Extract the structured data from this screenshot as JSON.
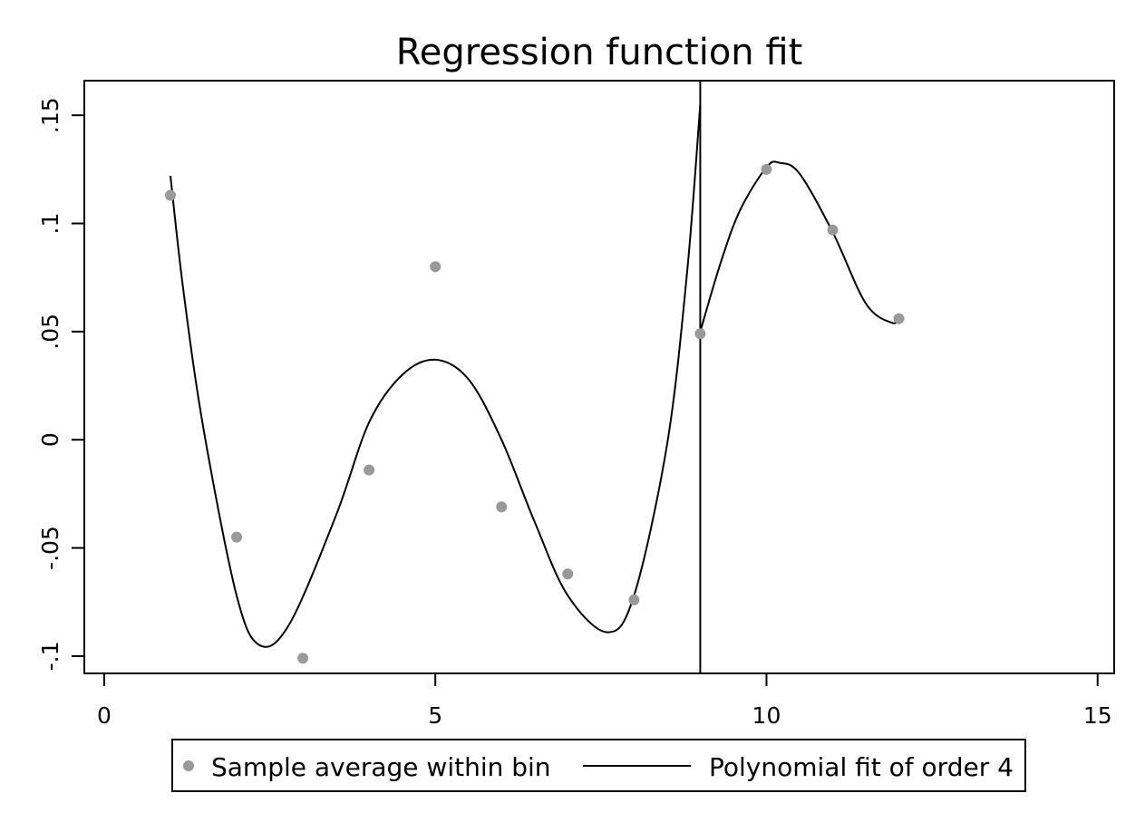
{
  "chart_data": {
    "type": "scatter",
    "title": "Regression function fit",
    "xlabel": "",
    "ylabel": "",
    "xlim": [
      -0.3,
      15.25
    ],
    "ylim": [
      -0.108,
      0.166
    ],
    "x_ticks": [
      0,
      5,
      10,
      15
    ],
    "x_tick_labels": [
      "0",
      "5",
      "10",
      "15"
    ],
    "y_ticks": [
      -0.1,
      -0.05,
      0,
      0.05,
      0.1,
      0.15
    ],
    "y_tick_labels": [
      "-.1",
      "-.05",
      "0",
      ".05",
      ".1",
      ".15"
    ],
    "grid": false,
    "cutoff_x": 9,
    "colors": {
      "points": "#999999",
      "fit": "#000000"
    },
    "legend_position": "bottom",
    "series": [
      {
        "name": "Sample average within bin",
        "type": "scatter",
        "x": [
          1,
          2,
          3,
          4,
          5,
          6,
          7,
          8,
          9,
          10,
          11,
          12
        ],
        "y": [
          0.113,
          -0.045,
          -0.101,
          -0.014,
          0.08,
          -0.031,
          -0.062,
          -0.074,
          0.049,
          0.125,
          0.097,
          0.056
        ]
      },
      {
        "name": "Polynomial fit of order 4",
        "type": "line",
        "segments": [
          {
            "x": [
              1.0,
              1.2,
              1.5,
              2.0,
              2.35,
              2.8,
              3.5,
              4.0,
              4.5,
              5.0,
              5.5,
              6.0,
              6.5,
              7.0,
              7.6,
              8.0,
              8.5,
              8.8,
              9.0
            ],
            "y": [
              0.122,
              0.068,
              0.005,
              -0.072,
              -0.095,
              -0.085,
              -0.035,
              0.008,
              0.03,
              0.037,
              0.028,
              0.0,
              -0.038,
              -0.072,
              -0.089,
              -0.072,
              -0.002,
              0.077,
              0.155
            ]
          },
          {
            "x": [
              9.0,
              9.3,
              9.6,
              10.0,
              10.2,
              10.5,
              11.0,
              11.5,
              11.9,
              12.0
            ],
            "y": [
              0.05,
              0.081,
              0.106,
              0.126,
              0.128,
              0.123,
              0.096,
              0.063,
              0.054,
              0.057
            ]
          }
        ]
      }
    ]
  }
}
